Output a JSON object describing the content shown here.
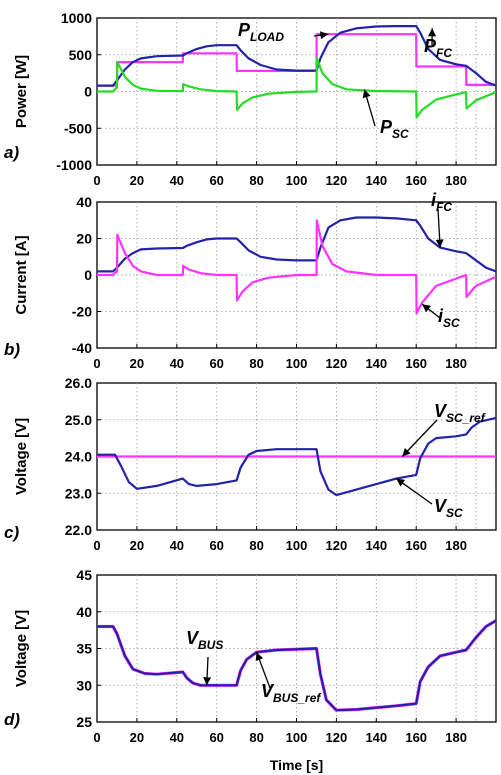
{
  "figure": {
    "xlabel": "Time [s]"
  },
  "chart_data": [
    {
      "type": "line",
      "panel_label": "a)",
      "ylabel": "Power [W]",
      "xlim": [
        0,
        200
      ],
      "ylim": [
        -1000,
        1000
      ],
      "xticks": [
        "0",
        "20",
        "40",
        "60",
        "80",
        "100",
        "120",
        "140",
        "160",
        "180"
      ],
      "yticks": [
        "-1000",
        "-500",
        "0",
        "500",
        "1000"
      ],
      "grid": true,
      "series": [
        {
          "name": "P_LOAD",
          "label_main": "P",
          "label_sub": "LOAD",
          "color": "#ff33ff",
          "x": [
            0,
            8,
            10,
            10.1,
            43,
            43.1,
            70,
            70.1,
            110,
            110.1,
            160,
            160.1,
            185,
            185.1,
            200
          ],
          "y": [
            80,
            80,
            80,
            400,
            400,
            520,
            520,
            280,
            280,
            780,
            780,
            340,
            340,
            90,
            90
          ]
        },
        {
          "name": "P_FC",
          "label_main": "P",
          "label_sub": "FC",
          "color": "#2222aa",
          "x": [
            0,
            8,
            10,
            14,
            18,
            22,
            30,
            43,
            45,
            50,
            55,
            60,
            70,
            72,
            76,
            82,
            90,
            100,
            110,
            112,
            116,
            122,
            130,
            140,
            150,
            160,
            162,
            166,
            172,
            180,
            185,
            190,
            195,
            200
          ],
          "y": [
            80,
            80,
            150,
            300,
            400,
            450,
            480,
            490,
            520,
            580,
            615,
            630,
            630,
            560,
            450,
            360,
            300,
            285,
            285,
            450,
            670,
            800,
            860,
            885,
            890,
            890,
            800,
            580,
            430,
            370,
            350,
            250,
            130,
            80
          ]
        },
        {
          "name": "P_SC",
          "label_main": "P",
          "label_sub": "SC",
          "color": "#22dd22",
          "x": [
            0,
            8,
            10,
            10.2,
            14,
            18,
            22,
            30,
            43,
            43.2,
            46,
            52,
            60,
            70,
            70.2,
            73,
            78,
            86,
            100,
            110,
            110.2,
            113,
            118,
            125,
            140,
            160,
            160.2,
            163,
            170,
            180,
            185,
            185.2,
            190,
            200
          ],
          "y": [
            0,
            0,
            60,
            400,
            200,
            90,
            40,
            10,
            5,
            100,
            70,
            30,
            5,
            0,
            -250,
            -160,
            -80,
            -30,
            -5,
            0,
            450,
            250,
            100,
            30,
            5,
            0,
            -350,
            -250,
            -110,
            -40,
            -10,
            -230,
            -120,
            -10
          ]
        }
      ]
    },
    {
      "type": "line",
      "panel_label": "b)",
      "ylabel": "Current [A]",
      "xlim": [
        0,
        200
      ],
      "ylim": [
        -40,
        40
      ],
      "xticks": [
        "0",
        "20",
        "40",
        "60",
        "80",
        "100",
        "120",
        "140",
        "160",
        "180"
      ],
      "yticks": [
        "-40",
        "-20",
        "0",
        "20",
        "40"
      ],
      "grid": true,
      "series": [
        {
          "name": "i_FC",
          "label_main": "i",
          "label_sub": "FC",
          "color": "#2222aa",
          "x": [
            0,
            8,
            10,
            14,
            18,
            22,
            30,
            43,
            45,
            50,
            55,
            60,
            70,
            72,
            76,
            82,
            90,
            100,
            110,
            112,
            116,
            122,
            130,
            140,
            150,
            160,
            162,
            166,
            172,
            180,
            185,
            190,
            195,
            200
          ],
          "y": [
            2,
            2,
            4,
            9,
            12,
            14,
            14.5,
            14.8,
            16,
            18,
            19.5,
            20,
            20,
            18,
            13.5,
            10,
            8.5,
            8,
            8,
            15,
            26,
            30,
            31.5,
            31.5,
            31,
            30,
            27,
            20,
            15,
            13,
            12,
            8,
            4,
            2
          ]
        },
        {
          "name": "i_SC",
          "label_main": "i",
          "label_sub": "SC",
          "color": "#ff33ff",
          "x": [
            0,
            8,
            10,
            10.2,
            14,
            18,
            22,
            30,
            43,
            43.2,
            46,
            52,
            60,
            70,
            70.2,
            73,
            78,
            86,
            100,
            110,
            110.2,
            113,
            118,
            125,
            140,
            160,
            160.2,
            163,
            170,
            180,
            185,
            185.2,
            190,
            200
          ],
          "y": [
            0,
            0,
            2,
            22,
            12,
            5,
            2,
            0,
            0,
            5,
            3,
            1,
            0,
            0,
            -14,
            -9,
            -4,
            -1.5,
            0,
            0,
            30,
            16,
            6,
            2,
            0,
            0,
            -21,
            -15,
            -6,
            -2,
            0,
            -12,
            -6,
            -1
          ]
        }
      ]
    },
    {
      "type": "line",
      "panel_label": "c)",
      "ylabel": "Voltage [V]",
      "xlim": [
        0,
        200
      ],
      "ylim": [
        22,
        26
      ],
      "xticks": [
        "0",
        "20",
        "40",
        "60",
        "80",
        "100",
        "120",
        "140",
        "160",
        "180"
      ],
      "yticks": [
        "22.0",
        "23.0",
        "24.0",
        "25.0",
        "26.0"
      ],
      "grid": true,
      "series": [
        {
          "name": "V_SC_ref",
          "label_main": "V",
          "label_sub": "SC_ref",
          "color": "#ff33ff",
          "x": [
            0,
            200
          ],
          "y": [
            24,
            24
          ]
        },
        {
          "name": "V_SC",
          "label_main": "V",
          "label_sub": "SC",
          "color": "#2222aa",
          "x": [
            0,
            9,
            12,
            16,
            20,
            30,
            43,
            46,
            50,
            60,
            70,
            72,
            76,
            80,
            90,
            110,
            112,
            116,
            120,
            130,
            150,
            160,
            162,
            166,
            170,
            180,
            185,
            188,
            192,
            196,
            200
          ],
          "y": [
            24.05,
            24.05,
            23.75,
            23.3,
            23.12,
            23.2,
            23.4,
            23.25,
            23.2,
            23.25,
            23.35,
            23.7,
            24.05,
            24.15,
            24.2,
            24.2,
            23.6,
            23.1,
            22.95,
            23.1,
            23.4,
            23.5,
            23.95,
            24.35,
            24.5,
            24.55,
            24.6,
            24.8,
            24.95,
            25.0,
            25.05
          ]
        }
      ]
    },
    {
      "type": "line",
      "panel_label": "d)",
      "ylabel": "Voltage [V]",
      "xlabel": "Time [s]",
      "xlim": [
        0,
        200
      ],
      "ylim": [
        25,
        45
      ],
      "xticks": [
        "0",
        "20",
        "40",
        "60",
        "80",
        "100",
        "120",
        "140",
        "160",
        "180"
      ],
      "yticks": [
        "25",
        "30",
        "35",
        "40",
        "45"
      ],
      "grid": true,
      "series": [
        {
          "name": "V_BUS_ref",
          "label_main": "V",
          "label_sub": "BUS_ref",
          "color": "#ff33ff",
          "x": [
            0,
            8,
            10,
            14,
            18,
            24,
            30,
            43,
            45,
            48,
            52,
            60,
            70,
            72,
            75,
            80,
            90,
            110,
            112,
            115,
            120,
            130,
            150,
            160,
            162,
            166,
            172,
            180,
            185,
            190,
            195,
            200
          ],
          "y": [
            38,
            38,
            37,
            34,
            32.2,
            31.6,
            31.5,
            31.8,
            31,
            30.3,
            30,
            30,
            30,
            32,
            33.5,
            34.5,
            34.8,
            35,
            31.5,
            28,
            26.6,
            26.7,
            27.2,
            27.5,
            30.5,
            32.5,
            34,
            34.5,
            34.8,
            36.5,
            38,
            38.8
          ]
        },
        {
          "name": "V_BUS",
          "label_main": "V",
          "label_sub": "BUS",
          "color": "#2222aa",
          "x": [
            0,
            8,
            10,
            14,
            18,
            24,
            30,
            43,
            45,
            48,
            52,
            60,
            70,
            72,
            75,
            80,
            90,
            110,
            112,
            115,
            120,
            130,
            150,
            160,
            162,
            166,
            172,
            180,
            185,
            190,
            195,
            200
          ],
          "y": [
            38,
            38,
            37,
            34,
            32.2,
            31.6,
            31.5,
            31.8,
            31,
            30.3,
            30,
            30,
            30,
            32,
            33.5,
            34.5,
            34.8,
            35,
            31.5,
            28,
            26.6,
            26.7,
            27.2,
            27.5,
            30.5,
            32.5,
            34,
            34.5,
            34.8,
            36.5,
            38,
            38.8
          ]
        }
      ]
    }
  ]
}
